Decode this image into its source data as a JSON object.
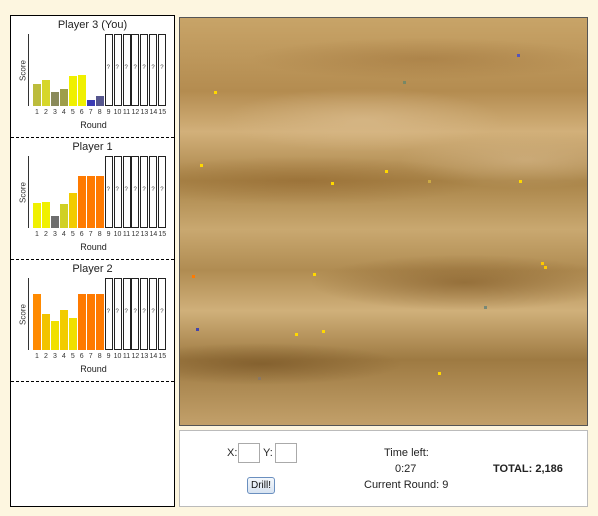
{
  "players": [
    {
      "name": "Player 3 (You)",
      "bars": [
        {
          "value": 0.3,
          "color": "#bcbc3c"
        },
        {
          "value": 0.36,
          "color": "#d6d62a"
        },
        {
          "value": 0.2,
          "color": "#8a8a5a"
        },
        {
          "value": 0.24,
          "color": "#9e9e4a"
        },
        {
          "value": 0.42,
          "color": "#f0f000"
        },
        {
          "value": 0.43,
          "color": "#f0f000"
        },
        {
          "value": 0.08,
          "color": "#3c3cb4"
        },
        {
          "value": 0.14,
          "color": "#56568e"
        }
      ]
    },
    {
      "name": "Player 1",
      "bars": [
        {
          "value": 0.35,
          "color": "#f0f000"
        },
        {
          "value": 0.36,
          "color": "#f0f000"
        },
        {
          "value": 0.16,
          "color": "#6e6e6e"
        },
        {
          "value": 0.33,
          "color": "#d0d024"
        },
        {
          "value": 0.49,
          "color": "#f2cc00"
        },
        {
          "value": 0.72,
          "color": "#ff7a00"
        },
        {
          "value": 0.72,
          "color": "#ff7a00"
        },
        {
          "value": 0.72,
          "color": "#ff7a00"
        }
      ]
    },
    {
      "name": "Player 2",
      "bars": [
        {
          "value": 0.78,
          "color": "#ff8a00"
        },
        {
          "value": 0.5,
          "color": "#f2c400"
        },
        {
          "value": 0.4,
          "color": "#f0e000"
        },
        {
          "value": 0.55,
          "color": "#f2cc00"
        },
        {
          "value": 0.45,
          "color": "#f0e000"
        },
        {
          "value": 0.78,
          "color": "#ff7a00"
        },
        {
          "value": 0.78,
          "color": "#ff7a00"
        },
        {
          "value": 0.78,
          "color": "#ff7a00"
        }
      ]
    }
  ],
  "rounds": [
    "1",
    "2",
    "3",
    "4",
    "5",
    "6",
    "7",
    "8",
    "9",
    "10",
    "11",
    "12",
    "13",
    "14",
    "15"
  ],
  "future_marker": "?",
  "axis": {
    "score": "Score",
    "round": "Round"
  },
  "controls": {
    "x_label": "X:",
    "y_label": "Y:",
    "x_value": "",
    "y_value": "",
    "drill_label": "Drill!",
    "time_label": "Time left:",
    "time_value": "0:27",
    "round_label": "Current Round: 9",
    "total_label": "TOTAL: 2,186"
  },
  "map_markers": [
    {
      "color": "#ffd800"
    },
    {
      "color": "#5555bb"
    },
    {
      "color": "#778866"
    },
    {
      "color": "#ffd800"
    },
    {
      "color": "#ffd800"
    },
    {
      "color": "#ffd800"
    },
    {
      "color": "#ccaa44"
    },
    {
      "color": "#ffd800"
    },
    {
      "color": "#ff7a00"
    },
    {
      "color": "#ffd800"
    },
    {
      "color": "#ffc800"
    },
    {
      "color": "#ffc800"
    },
    {
      "color": "#778877"
    },
    {
      "color": "#4444aa"
    },
    {
      "color": "#ffd800"
    },
    {
      "color": "#ffd800"
    },
    {
      "color": "#ffd800"
    },
    {
      "color": "#887766"
    }
  ]
}
